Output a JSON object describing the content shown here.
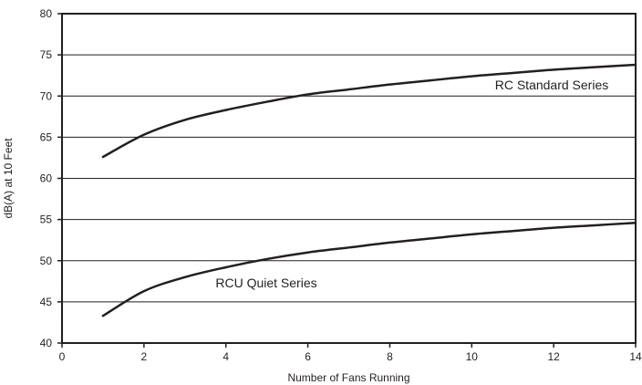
{
  "chart_data": {
    "type": "line",
    "title": "",
    "xlabel": "Number of Fans Running",
    "ylabel": "dB(A) at 10 Feet",
    "xlim": [
      0,
      14
    ],
    "ylim": [
      40,
      80
    ],
    "x_ticks": [
      "0",
      "2",
      "4",
      "6",
      "8",
      "10",
      "12",
      "14"
    ],
    "y_ticks": [
      "40",
      "45",
      "50",
      "55",
      "60",
      "65",
      "70",
      "75",
      "80"
    ],
    "grid": "horizontal",
    "legend": "none",
    "colors": {
      "line": "#231f20",
      "grid": "#231f20",
      "frame": "#231f20"
    },
    "series": [
      {
        "name": "RC Standard Series",
        "x": [
          1,
          2,
          3,
          4,
          5,
          6,
          7,
          8,
          9,
          10,
          11,
          12,
          13,
          14
        ],
        "values": [
          62.6,
          65.3,
          67.1,
          68.3,
          69.3,
          70.2,
          70.8,
          71.4,
          71.9,
          72.4,
          72.8,
          73.2,
          73.5,
          73.8
        ]
      },
      {
        "name": "RCU Quiet Series",
        "x": [
          1,
          2,
          3,
          4,
          5,
          6,
          7,
          8,
          9,
          10,
          11,
          12,
          13,
          14
        ],
        "values": [
          43.3,
          46.3,
          48.0,
          49.2,
          50.2,
          51.0,
          51.6,
          52.2,
          52.7,
          53.2,
          53.6,
          54.0,
          54.3,
          54.6
        ]
      }
    ]
  }
}
